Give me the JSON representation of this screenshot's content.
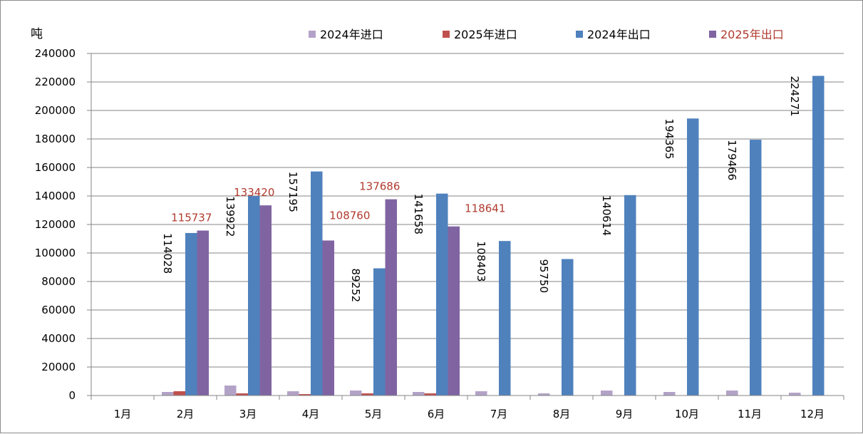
{
  "chart_data": {
    "type": "bar",
    "title": "",
    "ylabel": "吨",
    "xlabel": "",
    "ylim": [
      0,
      240000
    ],
    "ytick_step": 20000,
    "grid": true,
    "legend_position": "top",
    "categories": [
      "1月",
      "2月",
      "3月",
      "4月",
      "5月",
      "6月",
      "7月",
      "8月",
      "9月",
      "10月",
      "11月",
      "12月"
    ],
    "series": [
      {
        "name": "2024年进口",
        "color": "#b3a2c7",
        "values": [
          null,
          2500,
          7000,
          3000,
          3500,
          2500,
          3000,
          1500,
          3500,
          2500,
          3500,
          2000
        ]
      },
      {
        "name": "2025年进口",
        "color": "#c0504d",
        "values": [
          null,
          3000,
          1500,
          1000,
          1500,
          1500,
          null,
          null,
          null,
          null,
          null,
          null
        ]
      },
      {
        "name": "2024年出口",
        "color": "#4f81bd",
        "values": [
          null,
          114028,
          139922,
          157195,
          89252,
          141658,
          108403,
          95750,
          140614,
          194365,
          179466,
          224271
        ]
      },
      {
        "name": "2025年出口",
        "color": "#8064a2",
        "values": [
          null,
          115737,
          133420,
          108760,
          137686,
          118641,
          null,
          null,
          null,
          null,
          null,
          null
        ]
      }
    ],
    "data_labels": {
      "2024年出口": [
        "",
        "114028",
        "139922",
        "157195",
        "89252",
        "141658",
        "108403",
        "95750",
        "140614",
        "194365",
        "179466",
        "224271"
      ],
      "2025年出口": [
        "",
        "115737",
        "133420",
        "108760",
        "137686",
        "118641",
        "",
        "",
        "",
        "",
        "",
        ""
      ]
    },
    "legend_text_colors": [
      "#000000",
      "#000000",
      "#000000",
      "#b03a2e"
    ],
    "label_color_2025": "#b03a2e"
  }
}
